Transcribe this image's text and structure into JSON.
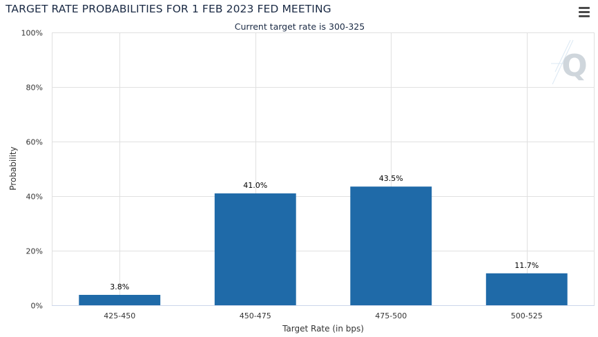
{
  "header": {
    "title": "TARGET RATE PROBABILITIES FOR 1 FEB 2023 FED MEETING",
    "menu_icon": "hamburger-menu-icon"
  },
  "chart_data": {
    "type": "bar",
    "title": "TARGET RATE PROBABILITIES FOR 1 FEB 2023 FED MEETING",
    "subtitle": "Current target rate is 300-325",
    "xlabel": "Target Rate (in bps)",
    "ylabel": "Probability",
    "categories": [
      "425-450",
      "450-475",
      "475-500",
      "500-525"
    ],
    "values": [
      3.8,
      41.0,
      43.5,
      11.7
    ],
    "data_labels": [
      "3.8%",
      "41.0%",
      "43.5%",
      "11.7%"
    ],
    "ylim": [
      0,
      100
    ],
    "yticks": [
      0,
      20,
      40,
      60,
      80,
      100
    ],
    "ytick_labels": [
      "0%",
      "20%",
      "40%",
      "60%",
      "80%",
      "100%"
    ],
    "grid": true,
    "bar_color": "#1f6aa8"
  },
  "watermark": {
    "letter": "Q",
    "color": "#cfd6dc"
  }
}
